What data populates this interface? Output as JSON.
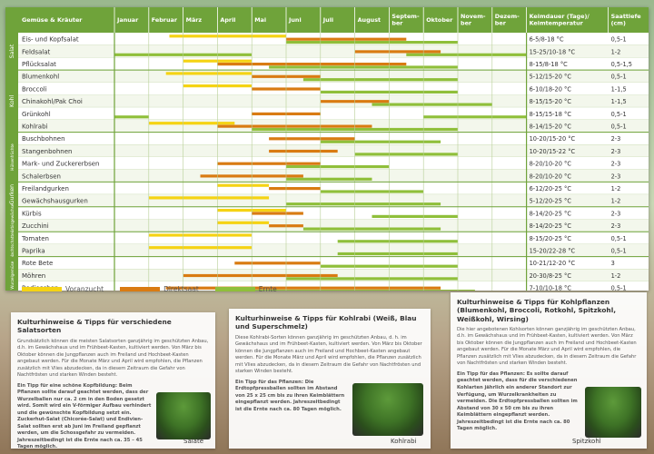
{
  "header": {
    "col_title": "Gemüse & Kräuter",
    "months": [
      "Januar",
      "Februar",
      "März",
      "April",
      "Mai",
      "Juni",
      "Juli",
      "August",
      "Septem-\nber",
      "Oktober",
      "Novem-\nber",
      "Dezem-\nber"
    ],
    "keimdauer": "Keimdauer (Tage)/\nKeimtemperatur",
    "saattiefe": "Saattiefe\n(cm)"
  },
  "groups": [
    {
      "label": "Salat",
      "rows": [
        0,
        2
      ]
    },
    {
      "label": "Kohl",
      "rows": [
        3,
        7
      ]
    },
    {
      "label": "Hülsenfrüchte",
      "rows": [
        8,
        11
      ]
    },
    {
      "label": "Gurken",
      "rows": [
        12,
        13
      ]
    },
    {
      "label": "Kürbisgewächse",
      "rows": [
        14,
        15
      ]
    },
    {
      "label": "Nachtschatten",
      "rows": [
        16,
        17
      ]
    },
    {
      "label": "Wurzelgemüse",
      "rows": [
        18,
        20
      ]
    }
  ],
  "colors": {
    "voranzucht": "#f5d313",
    "direktsaat": "#d97b12",
    "ernte": "#8fbf3a",
    "header": "#6fa33a"
  },
  "rows": [
    {
      "name": "Eis- und Kopfsalat",
      "keim": "6-5/8-18 °C",
      "tiefe": "0,5-1",
      "bars": {
        "v": [
          [
            1.6,
            5
          ]
        ],
        "d": [
          [
            5,
            8.5
          ]
        ],
        "e": [
          [
            5,
            10
          ]
        ]
      }
    },
    {
      "name": "Feldsalat",
      "keim": "15-25/10-18 °C",
      "tiefe": "1-2",
      "bars": {
        "v": [],
        "d": [
          [
            7,
            9.5
          ]
        ],
        "e": [
          [
            0,
            4
          ],
          [
            8.5,
            12
          ]
        ]
      }
    },
    {
      "name": "Pflücksalat",
      "keim": "8-15/8-18 °C",
      "tiefe": "0,5-1,5",
      "bars": {
        "v": [
          [
            2,
            4
          ]
        ],
        "d": [
          [
            3,
            8.5
          ]
        ],
        "e": [
          [
            4.5,
            10
          ]
        ]
      }
    },
    {
      "name": "Blumenkohl",
      "keim": "5-12/15-20 °C",
      "tiefe": "0,5-1",
      "bars": {
        "v": [
          [
            1.5,
            4
          ]
        ],
        "d": [
          [
            4,
            6
          ]
        ],
        "e": [
          [
            5.5,
            10
          ]
        ]
      }
    },
    {
      "name": "Broccoli",
      "keim": "6-10/18-20 °C",
      "tiefe": "1-1,5",
      "bars": {
        "v": [
          [
            2,
            4
          ]
        ],
        "d": [
          [
            4,
            6
          ]
        ],
        "e": [
          [
            6,
            10
          ]
        ]
      }
    },
    {
      "name": "Chinakohl/Pak Choi",
      "keim": "8-15/15-20 °C",
      "tiefe": "1-1,5",
      "bars": {
        "v": [],
        "d": [
          [
            6,
            8
          ]
        ],
        "e": [
          [
            7.5,
            11
          ]
        ]
      }
    },
    {
      "name": "Grünkohl",
      "keim": "8-15/15-18 °C",
      "tiefe": "0,5-1",
      "bars": {
        "v": [],
        "d": [
          [
            4,
            6
          ]
        ],
        "e": [
          [
            0,
            1
          ],
          [
            9,
            12
          ]
        ]
      }
    },
    {
      "name": "Kohlrabi",
      "keim": "8-14/15-20 °C",
      "tiefe": "0,5-1",
      "bars": {
        "v": [
          [
            1,
            3.5
          ]
        ],
        "d": [
          [
            3,
            7.5
          ]
        ],
        "e": [
          [
            4,
            10
          ]
        ]
      }
    },
    {
      "name": "Buschbohnen",
      "keim": "10-20/15-20 °C",
      "tiefe": "2-3",
      "bars": {
        "v": [],
        "d": [
          [
            4.5,
            7
          ]
        ],
        "e": [
          [
            6,
            9.5
          ]
        ]
      }
    },
    {
      "name": "Stangenbohnen",
      "keim": "10-20/15-22 °C",
      "tiefe": "2-3",
      "bars": {
        "v": [],
        "d": [
          [
            4.5,
            6.5
          ]
        ],
        "e": [
          [
            7,
            10
          ]
        ]
      }
    },
    {
      "name": "Mark- und Zuckererbsen",
      "keim": "8-20/10-20 °C",
      "tiefe": "2-3",
      "bars": {
        "v": [],
        "d": [
          [
            3,
            6
          ]
        ],
        "e": [
          [
            5,
            8
          ]
        ]
      }
    },
    {
      "name": "Schalerbsen",
      "keim": "8-20/10-20 °C",
      "tiefe": "2-3",
      "bars": {
        "v": [],
        "d": [
          [
            2.5,
            5.5
          ]
        ],
        "e": [
          [
            5,
            7.5
          ]
        ]
      }
    },
    {
      "name": "Freilandgurken",
      "keim": "6-12/20-25 °C",
      "tiefe": "1-2",
      "bars": {
        "v": [
          [
            3,
            4.5
          ]
        ],
        "d": [
          [
            4.5,
            6
          ]
        ],
        "e": [
          [
            6,
            9
          ]
        ]
      }
    },
    {
      "name": "Gewächshausgurken",
      "keim": "5-12/20-25 °C",
      "tiefe": "1-2",
      "bars": {
        "v": [
          [
            1,
            4.5
          ]
        ],
        "d": [],
        "e": [
          [
            5,
            9.5
          ]
        ]
      }
    },
    {
      "name": "Kürbis",
      "keim": "8-14/20-25 °C",
      "tiefe": "2-3",
      "bars": {
        "v": [
          [
            3,
            5
          ]
        ],
        "d": [
          [
            4,
            5.5
          ]
        ],
        "e": [
          [
            7.5,
            10
          ]
        ]
      }
    },
    {
      "name": "Zucchini",
      "keim": "8-14/20-25 °C",
      "tiefe": "2-3",
      "bars": {
        "v": [
          [
            3,
            4.5
          ]
        ],
        "d": [
          [
            4.5,
            5.5
          ]
        ],
        "e": [
          [
            5.5,
            9.5
          ]
        ]
      }
    },
    {
      "name": "Tomaten",
      "keim": "8-15/20-25 °C",
      "tiefe": "0,5-1",
      "bars": {
        "v": [
          [
            1,
            4
          ]
        ],
        "d": [],
        "e": [
          [
            6.5,
            10
          ]
        ]
      }
    },
    {
      "name": "Paprika",
      "keim": "15-20/22-28 °C",
      "tiefe": "0,5-1",
      "bars": {
        "v": [
          [
            1,
            4
          ]
        ],
        "d": [],
        "e": [
          [
            6.5,
            10
          ]
        ]
      }
    },
    {
      "name": "Rote Bete",
      "keim": "10-21/12-20 °C",
      "tiefe": "3",
      "bars": {
        "v": [],
        "d": [
          [
            3.5,
            6
          ]
        ],
        "e": [
          [
            6,
            10
          ]
        ]
      }
    },
    {
      "name": "Möhren",
      "keim": "20-30/8-25 °C",
      "tiefe": "1-2",
      "bars": {
        "v": [],
        "d": [
          [
            2,
            6.5
          ]
        ],
        "e": [
          [
            5,
            10
          ]
        ]
      }
    },
    {
      "name": "Radieschen",
      "keim": "7-10/10-18 °C",
      "tiefe": "0,5-1",
      "bars": {
        "v": [],
        "d": [
          [
            1.5,
            9.5
          ]
        ],
        "e": [
          [
            3,
            10.5
          ]
        ]
      }
    }
  ],
  "legend": {
    "voranzucht": "Voranzucht",
    "direktsaat": "Direktsaat",
    "ernte": "Ernte"
  },
  "cards": [
    {
      "title": "Kulturhinweise & Tipps für verschiedene Salatsorten",
      "p1": "Grundsätzlich können die meisten Salatsorten ganzjährig im geschützten Anbau, d.h. im Gewächshaus und im Frühbeet-Kasten, kultiviert werden. Von März bis Oktober können die Jungpflanzen auch im Freiland und Hochbeet-Kasten angebaut werden. Für die Monate März und April wird empfohlen, die Pflanzen zusätzlich mit Vlies abzudecken, da in diesem Zeitraum die Gefahr von Nachtfrösten und starken Winden besteht.",
      "p2": "Ein Tipp für eine schöne Kopfbildung: Beim Pflanzen sollte darauf geachtet werden, dass der Wurzelballen nur ca. 2 cm in den Boden gesetzt wird. Somit wird ein V-förmiger Aufbau verhindert und die gewünschte Kopfbildung setzt ein. Zuckerhut-Salat (Chicorée-Salat) und Endivien-Salat sollten erst ab Juni im Freiland gepflanzt werden, um die Schossgefahr zu vermeiden. Jahreszeitbedingt ist die Ernte nach ca. 35 – 45 Tagen möglich.",
      "caption": "Salate"
    },
    {
      "title": "Kulturhinweise & Tipps für Kohlrabi (Weiß, Blau und Superschmelz)",
      "p1": "Diese Kohlrabi-Sorten können ganzjährig im geschützten Anbau, d. h. im Gewächshaus und im Frühbeet-Kasten, kultiviert werden. Von März bis Oktober können die Jungpflanzen auch im Freiland und Hochbeet-Kasten angebaut werden. Für die Monate März und April wird empfohlen, die Pflanzen zusätzlich mit Vlies abzudecken, da in diesem Zeitraum die Gefahr von Nachtfrösten und starken Winden besteht.",
      "p2": "Ein Tipp für das Pflanzen: Die Erdtopfpressballen sollten im Abstand von 25 x 25 cm bis zu ihren Keimblättern eingepflanzt werden. Jahreszeitbedingt ist die Ernte nach ca. 80 Tagen möglich.",
      "caption": "Kohlrabi"
    },
    {
      "title": "Kulturhinweise & Tipps für Kohlpflanzen (Blumenkohl, Broccoli, Rotkohl, Spitzkohl, Weißkohl, Wirsing)",
      "p1": "Die hier angebotenen Kohlsorten können ganzjährig im geschützten Anbau, d.h. im Gewächshaus und im Frühbeet-Kasten, kultiviert werden. Von März bis Oktober können die Jungpflanzen auch im Freiland und Hochbeet-Kasten angebaut werden. Für die Monate März und April wird empfohlen, die Pflanzen zusätzlich mit Vlies abzudecken, da in diesem Zeitraum die Gefahr von Nachtfrösten und starken Winden besteht.",
      "p2": "Ein Tipp für das Pflanzen: Es sollte darauf geachtet werden, dass für die verschiedenen Kohlarten jährlich ein anderer Standort zur Verfügung, um Wurzelkrankheiten zu vermeiden. Die Erdtopfpressballen sollten im Abstand von 30 x 50 cm bis zu ihren Keimblättern eingepflanzt werden. Jahreszeitbedingt ist die Ernte nach ca. 80 Tagen möglich.",
      "caption": "Spitzkohl"
    }
  ]
}
